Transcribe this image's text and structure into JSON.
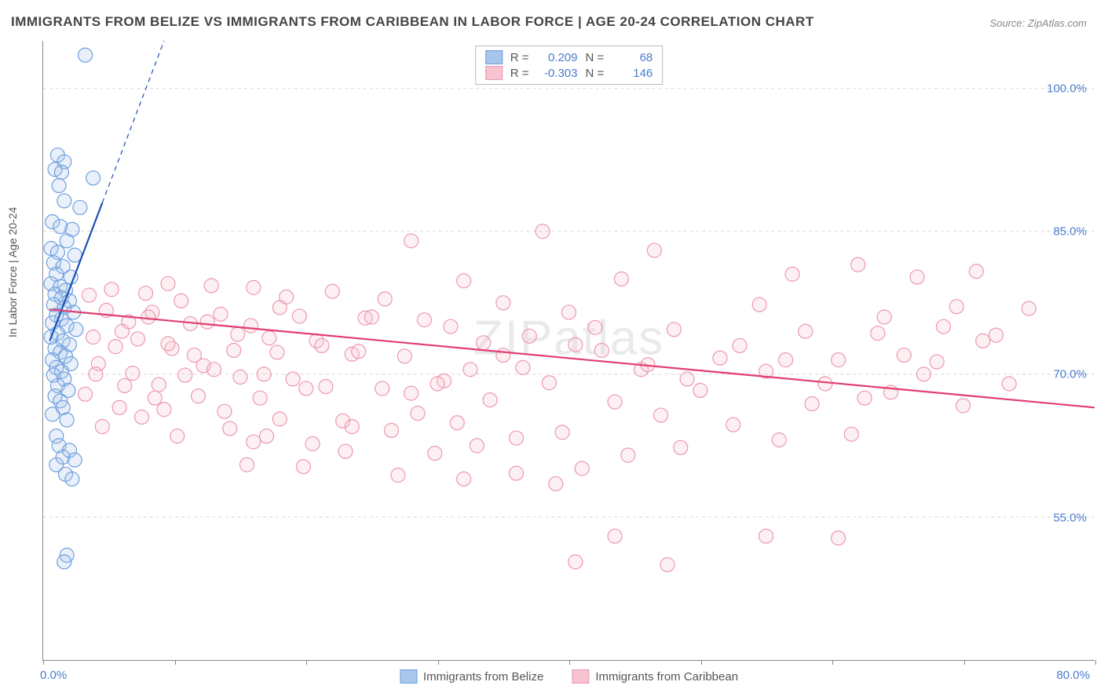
{
  "title": "IMMIGRANTS FROM BELIZE VS IMMIGRANTS FROM CARIBBEAN IN LABOR FORCE | AGE 20-24 CORRELATION CHART",
  "source": "Source: ZipAtlas.com",
  "watermark": "ZIPatlas",
  "ylabel": "In Labor Force | Age 20-24",
  "chart": {
    "type": "scatter",
    "background_color": "#ffffff",
    "grid_color": "#d8d8d8",
    "grid_dash": "4,4",
    "axis_color": "#888888",
    "xlim": [
      0.0,
      80.0
    ],
    "ylim": [
      40.0,
      105.0
    ],
    "ytick_values": [
      55.0,
      70.0,
      85.0,
      100.0
    ],
    "ytick_labels": [
      "55.0%",
      "70.0%",
      "85.0%",
      "100.0%"
    ],
    "xtick_positions": [
      0,
      10,
      20,
      30,
      40,
      50,
      60,
      70,
      80
    ],
    "xlim_labels": {
      "left": "0.0%",
      "right": "80.0%"
    },
    "tick_label_color": "#4a7bd0",
    "tick_label_fontsize": 15,
    "ylabel_fontsize": 14,
    "ylabel_color": "#555555",
    "marker_radius": 9,
    "marker_fill_opacity": 0.25,
    "marker_stroke_width": 1.2,
    "trendline_width": 2.2,
    "trendline_dash_width": 1.2,
    "series": [
      {
        "name": "Immigrants from Belize",
        "color_fill": "#a8c5ec",
        "color_stroke": "#6f9fdd",
        "trend_color": "#1b4fb5",
        "R": "0.209",
        "N": "68",
        "trendline_solid": {
          "x1": 0.5,
          "y1": 73.5,
          "x2": 4.5,
          "y2": 88.0
        },
        "trendline_dash": {
          "x1": 4.5,
          "y1": 88.0,
          "x2": 9.2,
          "y2": 105.0
        },
        "points": [
          [
            3.2,
            103.5
          ],
          [
            1.1,
            93.0
          ],
          [
            1.6,
            92.3
          ],
          [
            0.9,
            91.5
          ],
          [
            1.4,
            91.2
          ],
          [
            3.8,
            90.6
          ],
          [
            1.2,
            89.8
          ],
          [
            1.6,
            88.2
          ],
          [
            2.8,
            87.5
          ],
          [
            0.7,
            86.0
          ],
          [
            1.3,
            85.5
          ],
          [
            2.2,
            85.2
          ],
          [
            1.8,
            84.0
          ],
          [
            0.6,
            83.2
          ],
          [
            1.1,
            82.8
          ],
          [
            2.4,
            82.5
          ],
          [
            0.8,
            81.7
          ],
          [
            1.5,
            81.3
          ],
          [
            1.0,
            80.5
          ],
          [
            2.1,
            80.2
          ],
          [
            0.6,
            79.5
          ],
          [
            1.3,
            79.2
          ],
          [
            1.7,
            78.8
          ],
          [
            0.9,
            78.4
          ],
          [
            1.4,
            78.0
          ],
          [
            2.0,
            77.7
          ],
          [
            0.8,
            77.3
          ],
          [
            1.6,
            77.0
          ],
          [
            2.3,
            76.5
          ],
          [
            1.0,
            76.2
          ],
          [
            1.4,
            75.8
          ],
          [
            0.7,
            75.4
          ],
          [
            1.8,
            75.1
          ],
          [
            2.5,
            74.7
          ],
          [
            1.1,
            74.3
          ],
          [
            0.6,
            73.9
          ],
          [
            1.5,
            73.5
          ],
          [
            2.0,
            73.1
          ],
          [
            0.9,
            72.7
          ],
          [
            1.3,
            72.3
          ],
          [
            1.7,
            71.9
          ],
          [
            0.7,
            71.5
          ],
          [
            2.1,
            71.1
          ],
          [
            1.0,
            70.7
          ],
          [
            1.4,
            70.3
          ],
          [
            0.8,
            69.9
          ],
          [
            1.6,
            69.5
          ],
          [
            1.1,
            68.8
          ],
          [
            1.9,
            68.3
          ],
          [
            0.9,
            67.7
          ],
          [
            1.3,
            67.2
          ],
          [
            1.5,
            66.5
          ],
          [
            0.7,
            65.8
          ],
          [
            1.8,
            65.2
          ],
          [
            1.0,
            63.5
          ],
          [
            1.2,
            62.5
          ],
          [
            2.0,
            62.0
          ],
          [
            1.5,
            61.3
          ],
          [
            2.4,
            61.0
          ],
          [
            1.0,
            60.5
          ],
          [
            1.7,
            59.5
          ],
          [
            2.2,
            59.0
          ],
          [
            1.8,
            51.0
          ],
          [
            1.6,
            50.3
          ]
        ]
      },
      {
        "name": "Immigrants from Caribbean",
        "color_fill": "#f7c3d0",
        "color_stroke": "#ec98b0",
        "trend_color": "#e23d70",
        "R": "-0.303",
        "N": "146",
        "trendline_solid": {
          "x1": 0.5,
          "y1": 76.8,
          "x2": 80.0,
          "y2": 66.5
        },
        "trendline_dash": null,
        "points": [
          [
            38.0,
            85.0
          ],
          [
            28.0,
            84.0
          ],
          [
            46.5,
            83.0
          ],
          [
            62.0,
            81.5
          ],
          [
            71.0,
            80.8
          ],
          [
            57.0,
            80.5
          ],
          [
            66.5,
            80.2
          ],
          [
            44.0,
            80.0
          ],
          [
            32.0,
            79.8
          ],
          [
            9.5,
            79.5
          ],
          [
            12.8,
            79.3
          ],
          [
            16.0,
            79.1
          ],
          [
            5.2,
            78.9
          ],
          [
            22.0,
            78.7
          ],
          [
            7.8,
            78.5
          ],
          [
            3.5,
            78.3
          ],
          [
            18.5,
            78.1
          ],
          [
            26.0,
            77.9
          ],
          [
            10.5,
            77.7
          ],
          [
            35.0,
            77.5
          ],
          [
            54.5,
            77.3
          ],
          [
            69.5,
            77.1
          ],
          [
            75.0,
            76.9
          ],
          [
            4.8,
            76.7
          ],
          [
            8.3,
            76.5
          ],
          [
            13.5,
            76.3
          ],
          [
            19.5,
            76.1
          ],
          [
            24.5,
            75.9
          ],
          [
            29.0,
            75.7
          ],
          [
            6.5,
            75.5
          ],
          [
            11.2,
            75.3
          ],
          [
            15.8,
            75.1
          ],
          [
            42.0,
            74.9
          ],
          [
            48.0,
            74.7
          ],
          [
            58.0,
            74.5
          ],
          [
            63.5,
            74.3
          ],
          [
            72.5,
            74.1
          ],
          [
            3.8,
            73.9
          ],
          [
            7.2,
            73.7
          ],
          [
            20.8,
            73.5
          ],
          [
            33.5,
            73.3
          ],
          [
            40.5,
            73.1
          ],
          [
            5.5,
            72.9
          ],
          [
            9.8,
            72.7
          ],
          [
            14.5,
            72.5
          ],
          [
            17.8,
            72.3
          ],
          [
            23.5,
            72.1
          ],
          [
            27.5,
            71.9
          ],
          [
            51.5,
            71.7
          ],
          [
            60.5,
            71.5
          ],
          [
            68.0,
            71.3
          ],
          [
            4.2,
            71.1
          ],
          [
            12.2,
            70.9
          ],
          [
            36.5,
            70.7
          ],
          [
            45.5,
            70.5
          ],
          [
            55.0,
            70.3
          ],
          [
            6.8,
            70.1
          ],
          [
            10.8,
            69.9
          ],
          [
            15.0,
            69.7
          ],
          [
            19.0,
            69.5
          ],
          [
            30.5,
            69.3
          ],
          [
            38.5,
            69.1
          ],
          [
            8.8,
            68.9
          ],
          [
            21.5,
            68.7
          ],
          [
            25.8,
            68.5
          ],
          [
            50.0,
            68.3
          ],
          [
            64.5,
            68.1
          ],
          [
            3.2,
            67.9
          ],
          [
            11.8,
            67.7
          ],
          [
            16.5,
            67.5
          ],
          [
            34.0,
            67.3
          ],
          [
            43.5,
            67.1
          ],
          [
            58.5,
            66.9
          ],
          [
            70.0,
            66.7
          ],
          [
            5.8,
            66.5
          ],
          [
            9.2,
            66.3
          ],
          [
            13.8,
            66.1
          ],
          [
            28.5,
            65.9
          ],
          [
            47.0,
            65.7
          ],
          [
            7.5,
            65.5
          ],
          [
            18.0,
            65.3
          ],
          [
            22.8,
            65.1
          ],
          [
            31.5,
            64.9
          ],
          [
            52.5,
            64.7
          ],
          [
            4.5,
            64.5
          ],
          [
            14.2,
            64.3
          ],
          [
            26.5,
            64.1
          ],
          [
            39.5,
            63.9
          ],
          [
            61.5,
            63.7
          ],
          [
            10.2,
            63.5
          ],
          [
            36.0,
            63.3
          ],
          [
            56.0,
            63.1
          ],
          [
            16.0,
            62.9
          ],
          [
            20.5,
            62.7
          ],
          [
            33.0,
            62.5
          ],
          [
            48.5,
            62.3
          ],
          [
            23.0,
            61.9
          ],
          [
            29.8,
            61.7
          ],
          [
            44.5,
            61.5
          ],
          [
            30.0,
            69.0
          ],
          [
            15.5,
            60.5
          ],
          [
            19.8,
            60.3
          ],
          [
            41.0,
            60.1
          ],
          [
            36.0,
            59.6
          ],
          [
            27.0,
            59.4
          ],
          [
            12.5,
            75.5
          ],
          [
            14.8,
            74.2
          ],
          [
            17.2,
            73.8
          ],
          [
            21.2,
            73.0
          ],
          [
            24.0,
            72.4
          ],
          [
            8.0,
            76.0
          ],
          [
            6.0,
            74.5
          ],
          [
            9.5,
            73.2
          ],
          [
            11.5,
            72.0
          ],
          [
            13.0,
            70.5
          ],
          [
            16.8,
            70.0
          ],
          [
            20.0,
            68.5
          ],
          [
            18.0,
            77.0
          ],
          [
            25.0,
            76.0
          ],
          [
            31.0,
            75.0
          ],
          [
            37.0,
            74.0
          ],
          [
            35.0,
            72.0
          ],
          [
            32.5,
            70.5
          ],
          [
            28.0,
            68.0
          ],
          [
            40.0,
            76.5
          ],
          [
            42.5,
            72.5
          ],
          [
            46.0,
            71.0
          ],
          [
            49.0,
            69.5
          ],
          [
            53.0,
            73.0
          ],
          [
            56.5,
            71.5
          ],
          [
            59.5,
            69.0
          ],
          [
            62.5,
            67.5
          ],
          [
            65.5,
            72.0
          ],
          [
            67.0,
            70.0
          ],
          [
            73.5,
            69.0
          ],
          [
            64.0,
            76.0
          ],
          [
            68.5,
            75.0
          ],
          [
            71.5,
            73.5
          ],
          [
            43.5,
            53.0
          ],
          [
            55.0,
            53.0
          ],
          [
            60.5,
            52.8
          ],
          [
            40.5,
            50.3
          ],
          [
            47.5,
            50.0
          ],
          [
            39.0,
            58.5
          ],
          [
            32.0,
            59.0
          ],
          [
            23.5,
            64.5
          ],
          [
            17.0,
            63.5
          ],
          [
            8.5,
            67.5
          ],
          [
            6.2,
            68.8
          ],
          [
            4.0,
            70.0
          ]
        ]
      }
    ]
  },
  "legend_top": {
    "border_color": "#bbbbbb",
    "fontsize": 15,
    "label_R": "R =",
    "label_N": "N ="
  },
  "legend_bottom": {
    "fontsize": 15,
    "color": "#555555"
  }
}
